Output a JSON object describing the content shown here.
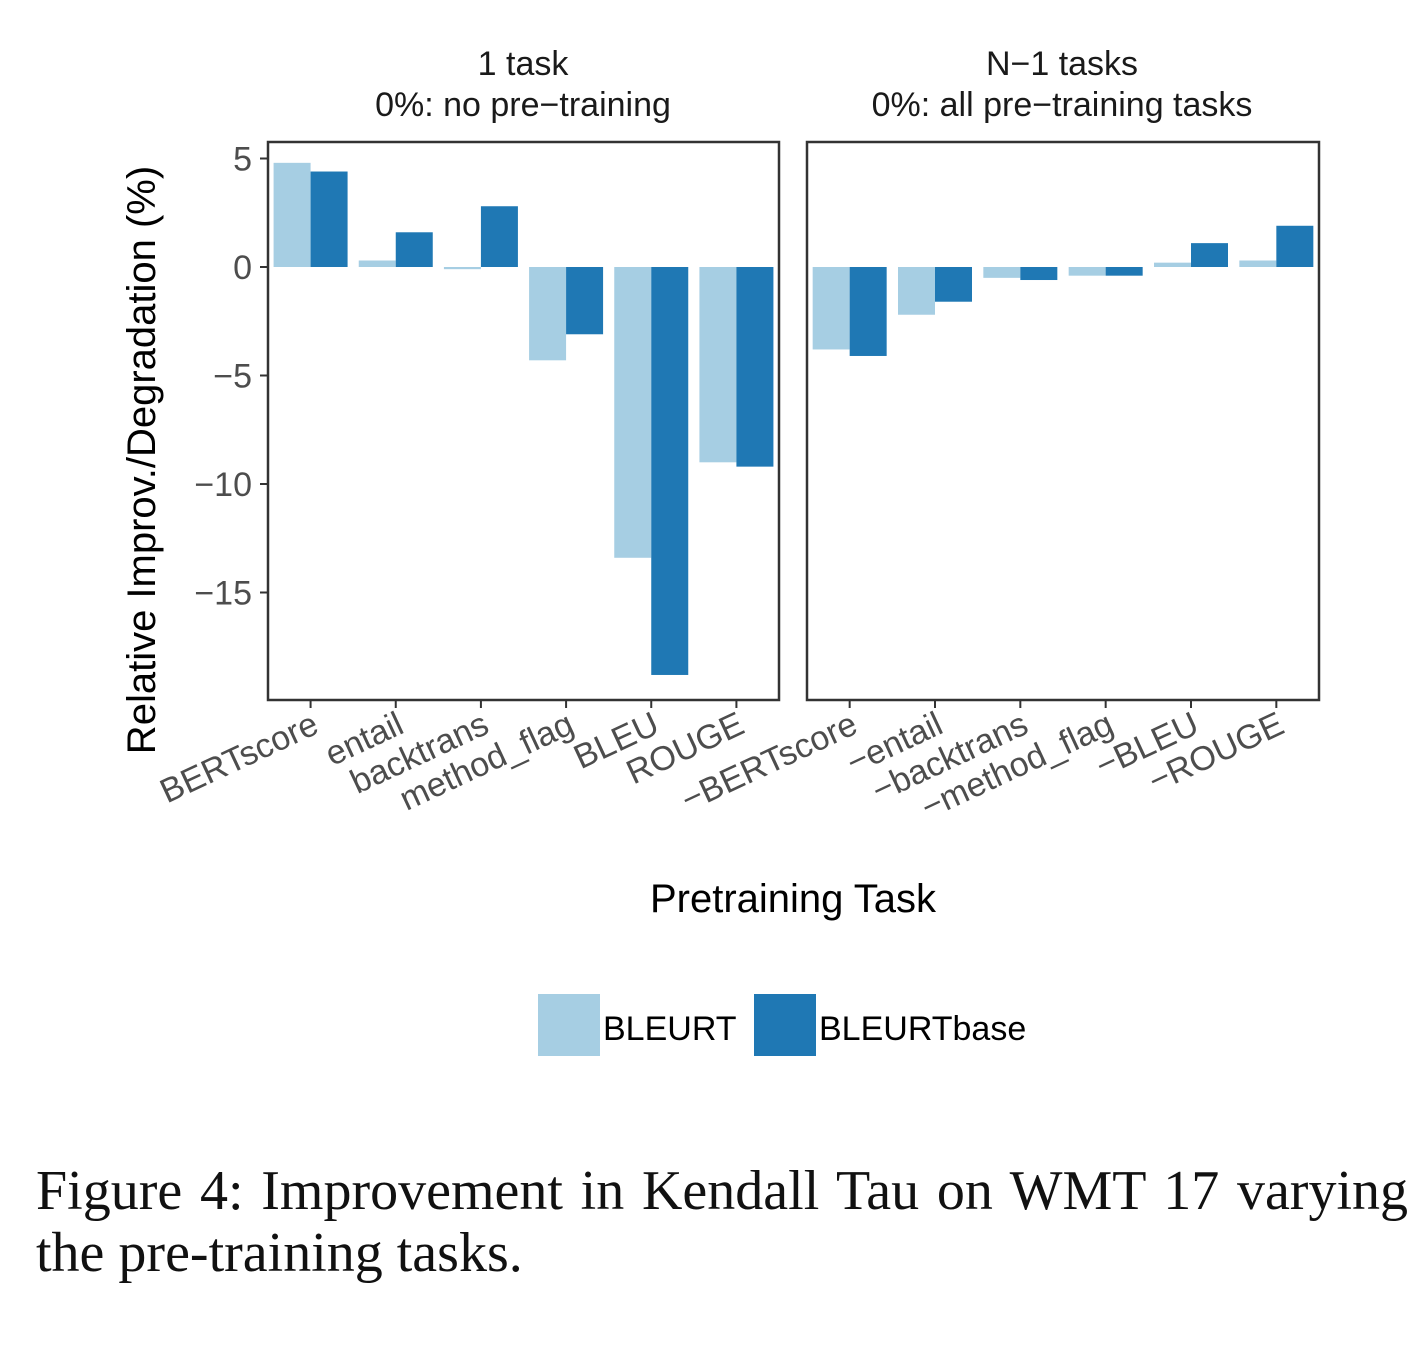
{
  "chart_data": {
    "type": "bar",
    "ylabel": "Relative Improv./Degradation (%)",
    "xlabel": "Pretraining Task",
    "ylim": [
      -20,
      5.5
    ],
    "yticks": [
      5,
      0,
      -5,
      -10,
      -15
    ],
    "ytick_labels": [
      "5",
      "0",
      "−5",
      "−10",
      "−15"
    ],
    "grid": false,
    "legend_position": "bottom",
    "series_names": [
      "BLEURT",
      "BLEURTbase"
    ],
    "colors": {
      "BLEURT": "#a6cee3",
      "BLEURTbase": "#1f78b4"
    },
    "panels": [
      {
        "title_line1": "1 task",
        "title_line2": "0%: no pre−training",
        "categories": [
          "BERTscore",
          "entail",
          "backtrans",
          "method_flag",
          "BLEU",
          "ROUGE"
        ],
        "series": [
          {
            "name": "BLEURT",
            "values": [
              4.8,
              0.3,
              -0.1,
              -4.3,
              -13.4,
              -9.0
            ]
          },
          {
            "name": "BLEURTbase",
            "values": [
              4.4,
              1.6,
              2.8,
              -3.1,
              -18.8,
              -9.2
            ]
          }
        ]
      },
      {
        "title_line1": "N−1 tasks",
        "title_line2": "0%: all pre−training tasks",
        "categories": [
          "−BERTscore",
          "−entail",
          "−backtrans",
          "−method_flag",
          "−BLEU",
          "−ROUGE"
        ],
        "series": [
          {
            "name": "BLEURT",
            "values": [
              -3.8,
              -2.2,
              -0.5,
              -0.4,
              0.2,
              0.3
            ]
          },
          {
            "name": "BLEURTbase",
            "values": [
              -4.1,
              -1.6,
              -0.6,
              -0.4,
              1.1,
              1.9
            ]
          }
        ]
      }
    ]
  },
  "caption": "Figure 4:  Improvement in Kendall Tau on WMT 17 varying the pre-training tasks."
}
